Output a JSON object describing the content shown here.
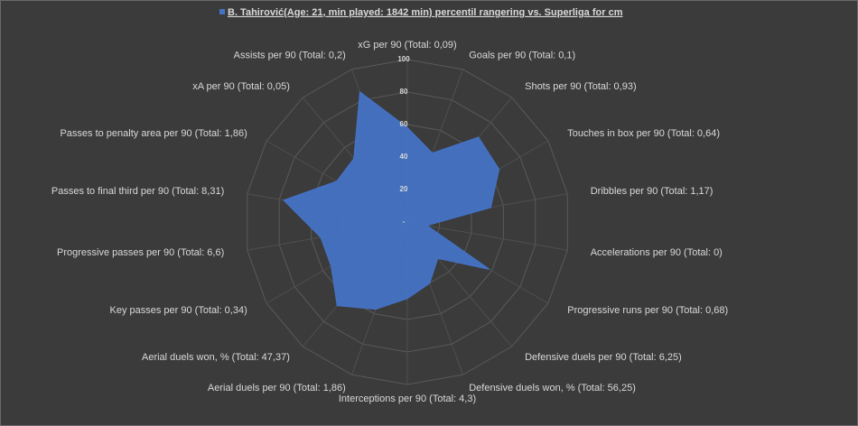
{
  "chart_data": {
    "type": "radar",
    "categories": [
      "xG per 90 (Total: 0,09)",
      "Goals per 90 (Total: 0,1)",
      "Shots per 90 (Total: 0,93)",
      "Touches in box per 90 (Total: 0,64)",
      "Dribbles per 90 (Total: 1,17)",
      "Accelerations per 90 (Total: 0)",
      "Progressive runs per 90 (Total: 0,68)",
      "Defensive duels per 90 (Total: 6,25)",
      "Defensive duels won, % (Total: 56,25)",
      "Interceptions per 90 (Total: 4,3)",
      "Aerial duels per 90 (Total: 1,86)",
      "Aerial duels won, % (Total: 47,37)",
      "Key passes per 90 (Total: 0,34)",
      "Progressive passes per 90 (Total: 6,6)",
      "Passes to final third per 90 (Total: 8,31)",
      "Passes to penalty area per 90 (Total: 1,86)",
      "xA per 90 (Total: 0,05)",
      "Assists per 90 (Total: 0,2)"
    ],
    "series": [
      {
        "name": "B. Tahirović(Age: 21, min played: 1842 min) percentil rangering vs. Superliga for cm",
        "color": "#4472c4",
        "values": [
          58,
          45,
          68,
          65,
          52,
          12,
          58,
          29,
          40,
          47,
          57,
          67,
          54,
          54,
          77,
          50,
          51,
          85
        ]
      }
    ],
    "ylim": [
      0,
      100
    ],
    "yticks": [
      {
        "value": 0,
        "label": "-"
      },
      20,
      40,
      60,
      80,
      100
    ],
    "grid": true,
    "legend": "top"
  }
}
